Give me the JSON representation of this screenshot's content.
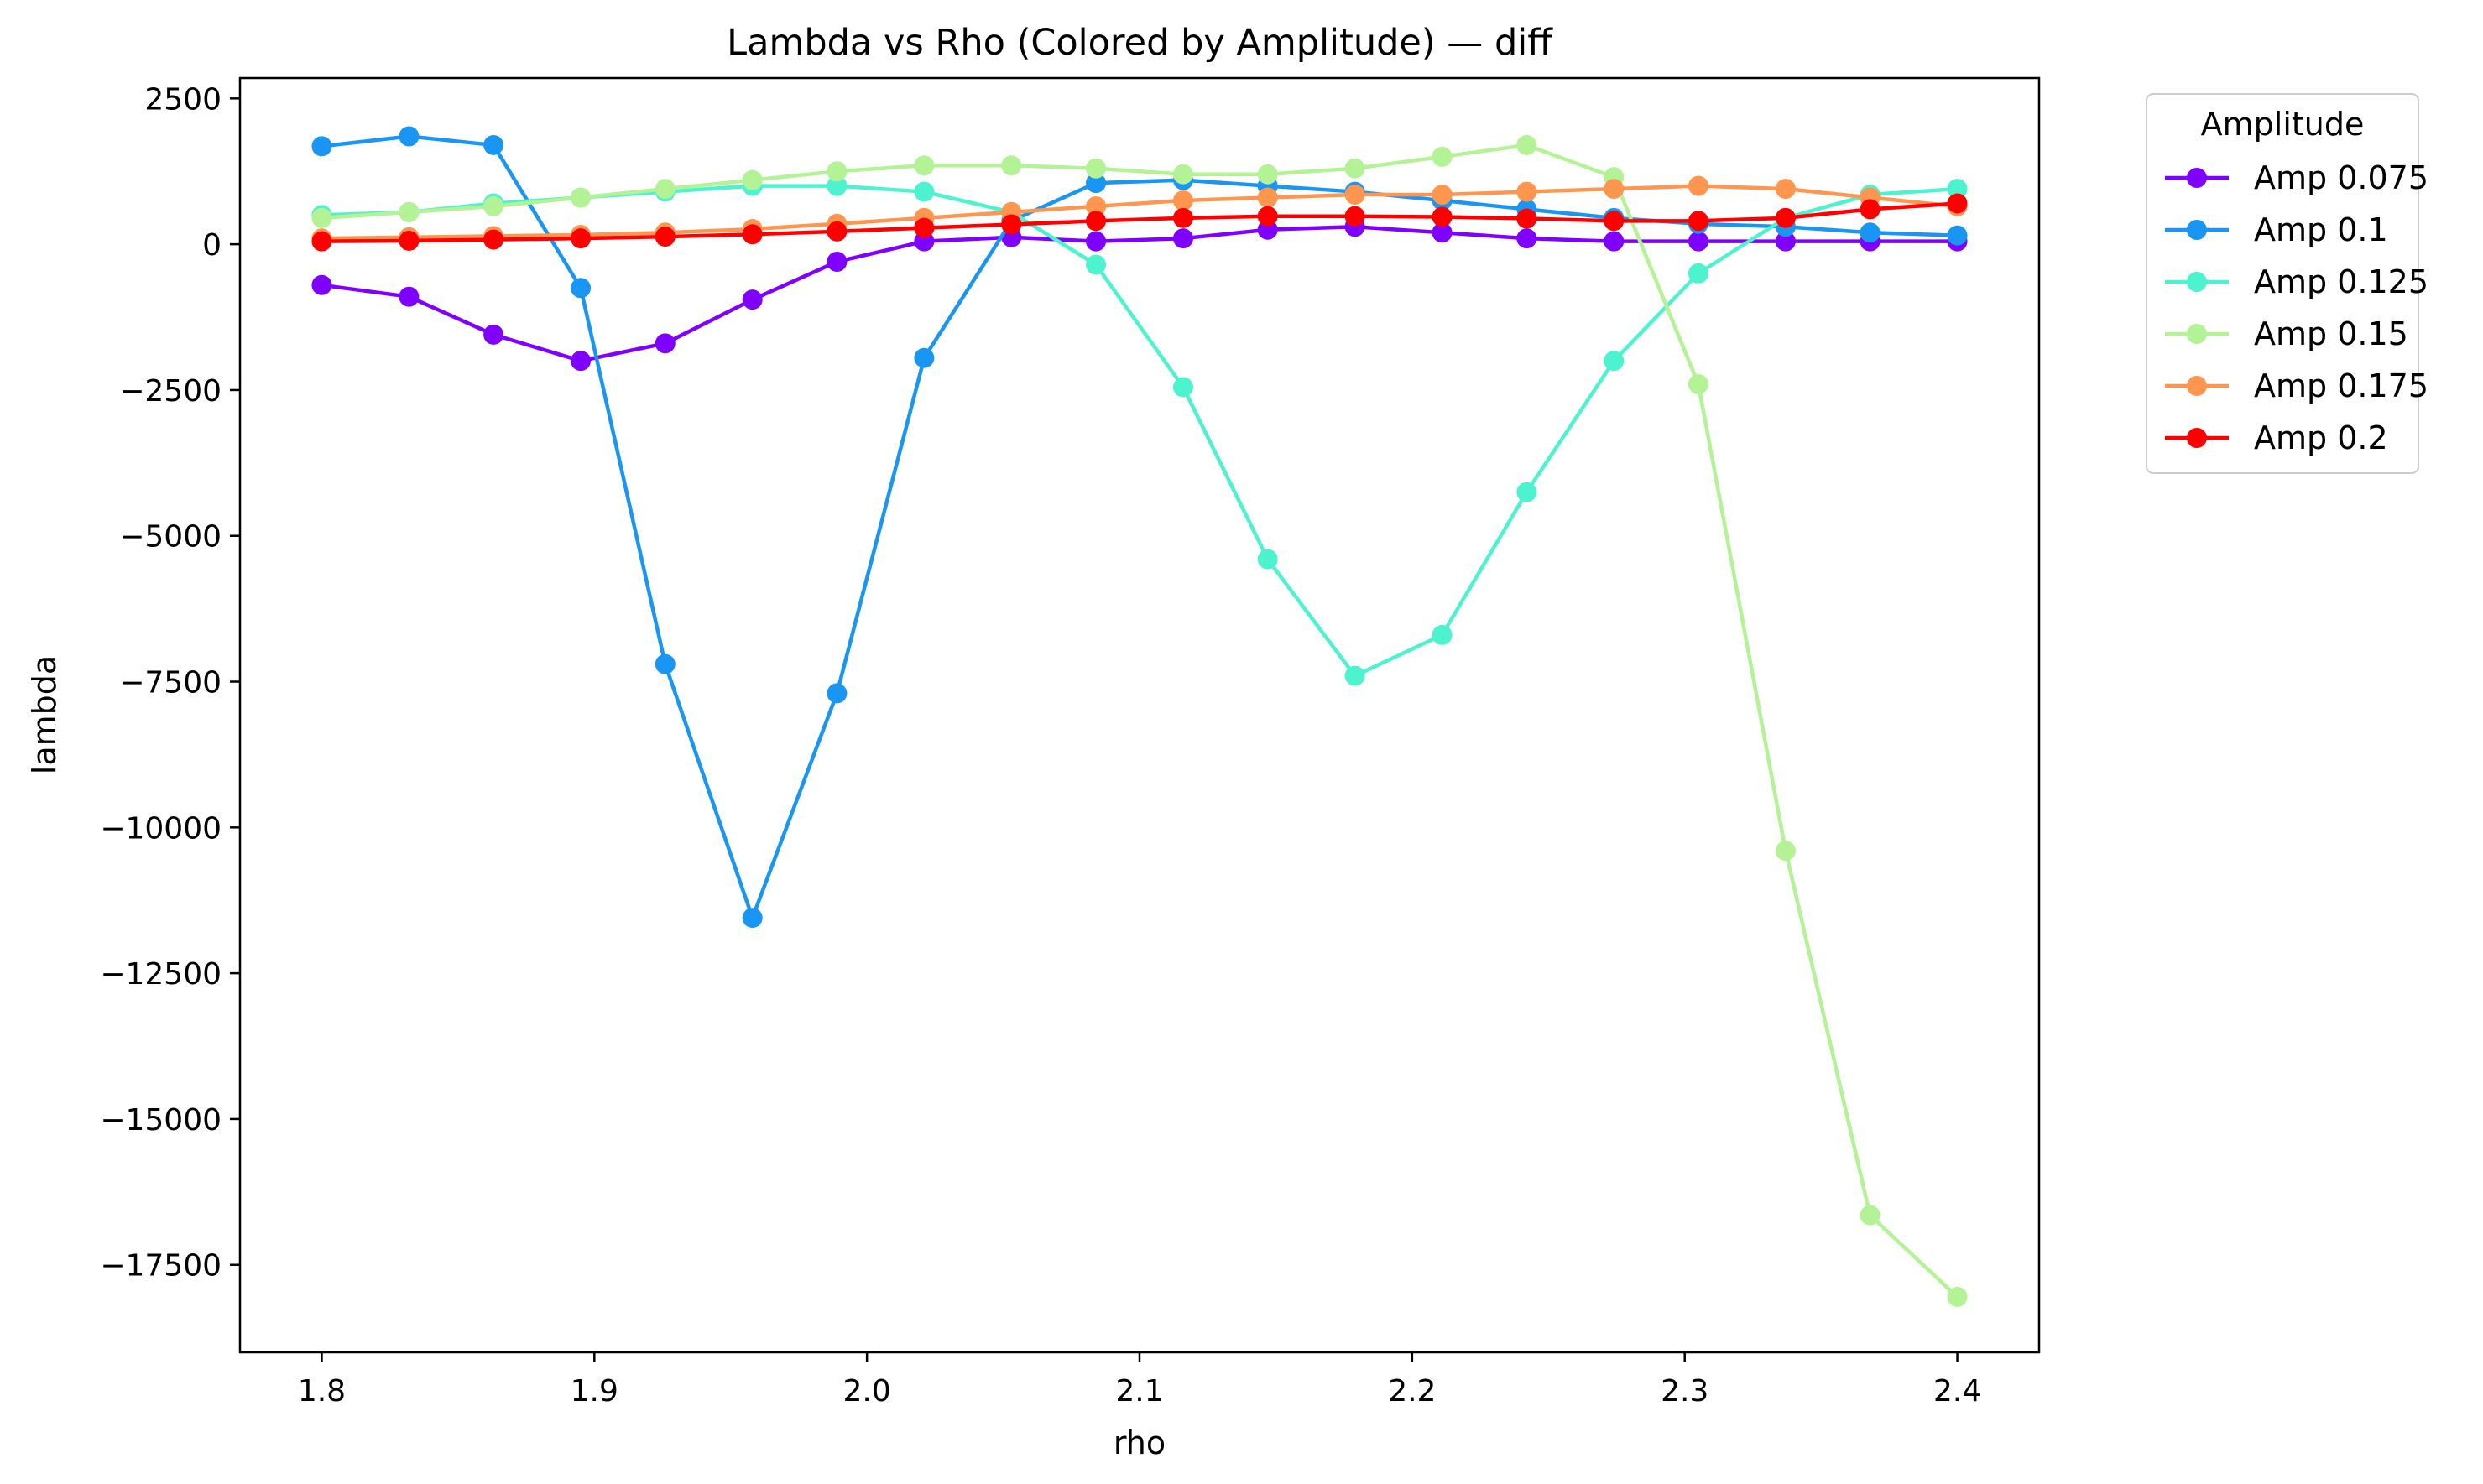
{
  "chart_data": {
    "type": "line",
    "title": "Lambda vs Rho (Colored by Amplitude) — diff",
    "xlabel": "rho",
    "ylabel": "lambda",
    "xlim": [
      1.77,
      2.43
    ],
    "ylim": [
      -19000,
      2850
    ],
    "x_ticks": [
      1.8,
      1.9,
      2.0,
      2.1,
      2.2,
      2.3,
      2.4
    ],
    "x_tick_labels": [
      "1.8",
      "1.9",
      "2.0",
      "2.1",
      "2.2",
      "2.3",
      "2.4"
    ],
    "y_ticks": [
      2500,
      0,
      -2500,
      -5000,
      -7500,
      -10000,
      -12500,
      -15000,
      -17500
    ],
    "y_tick_labels": [
      "2500",
      "0",
      "−2500",
      "−5000",
      "−7500",
      "−10000",
      "−12500",
      "−15000",
      "−17500"
    ],
    "grid": false,
    "legend": {
      "title": "Amplitude",
      "placement": "outside-top-right"
    },
    "x": [
      1.8,
      1.832,
      1.863,
      1.895,
      1.926,
      1.958,
      1.989,
      2.021,
      2.053,
      2.084,
      2.116,
      2.147,
      2.179,
      2.211,
      2.242,
      2.274,
      2.305,
      2.337,
      2.368,
      2.4
    ],
    "series": [
      {
        "name": "Amp 0.075",
        "color": "#8000ff",
        "values": [
          -700,
          -900,
          -1550,
          -2000,
          -1700,
          -950,
          -300,
          50,
          120,
          50,
          100,
          250,
          300,
          200,
          100,
          50,
          50,
          50,
          50,
          50
        ]
      },
      {
        "name": "Amp 0.1",
        "color": "#1996f3",
        "values": [
          1680,
          1850,
          1700,
          -750,
          -7200,
          -11550,
          -7700,
          -1950,
          400,
          1050,
          1100,
          1000,
          900,
          750,
          600,
          450,
          350,
          300,
          200,
          150
        ]
      },
      {
        "name": "Amp 0.125",
        "color": "#4df3ce",
        "values": [
          500,
          550,
          700,
          800,
          900,
          1000,
          1000,
          900,
          550,
          -350,
          -2450,
          -5400,
          -7400,
          -6700,
          -4250,
          -2000,
          -500,
          450,
          850,
          950
        ]
      },
      {
        "name": "Amp 0.15",
        "color": "#b3f396",
        "values": [
          450,
          550,
          650,
          800,
          950,
          1100,
          1250,
          1350,
          1350,
          1300,
          1200,
          1200,
          1300,
          1500,
          1700,
          1150,
          -2400,
          -10400,
          -16650,
          -18050
        ]
      },
      {
        "name": "Amp 0.175",
        "color": "#ff964f",
        "values": [
          100,
          120,
          140,
          160,
          200,
          260,
          350,
          450,
          550,
          650,
          750,
          800,
          850,
          850,
          900,
          950,
          1000,
          950,
          800,
          650
        ]
      },
      {
        "name": "Amp 0.2",
        "color": "#ff0000",
        "values": [
          50,
          60,
          80,
          100,
          130,
          170,
          220,
          280,
          340,
          400,
          450,
          480,
          480,
          470,
          440,
          400,
          400,
          450,
          600,
          700
        ]
      }
    ]
  }
}
